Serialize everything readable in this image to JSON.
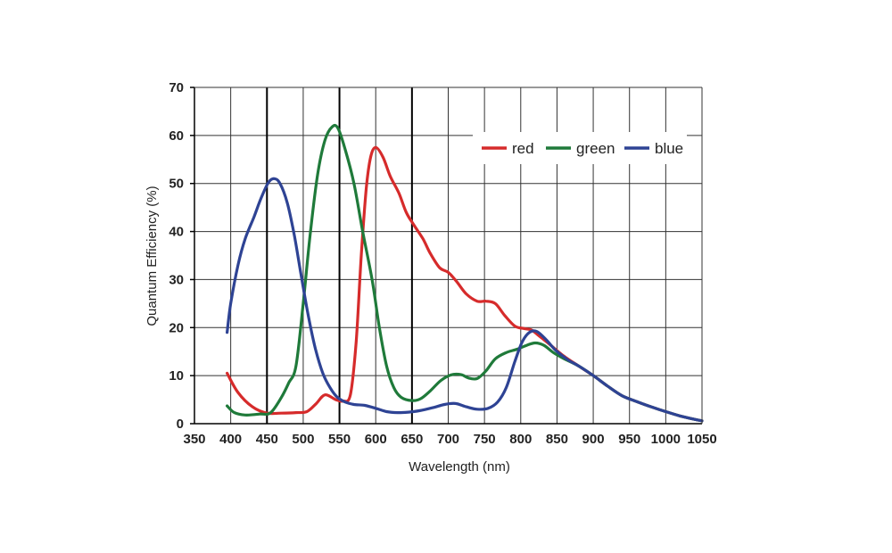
{
  "chart_data": {
    "type": "line",
    "title": "",
    "xlabel": "Wavelength (nm)",
    "ylabel": "Quantum Efficiency (%)",
    "xlim": [
      350,
      1050
    ],
    "ylim": [
      0,
      70
    ],
    "xticks": [
      350,
      400,
      450,
      500,
      550,
      600,
      650,
      700,
      750,
      800,
      850,
      900,
      950,
      1000,
      1050
    ],
    "yticks": [
      0,
      10,
      20,
      30,
      40,
      50,
      60,
      70
    ],
    "grid": true,
    "legend_position": "top-right",
    "series": [
      {
        "name": "red",
        "color": "#d62b2b",
        "points": [
          [
            395,
            10.5
          ],
          [
            410,
            6.5
          ],
          [
            430,
            3.5
          ],
          [
            450,
            2.2
          ],
          [
            470,
            2.2
          ],
          [
            490,
            2.3
          ],
          [
            505,
            2.5
          ],
          [
            518,
            4.2
          ],
          [
            530,
            6.0
          ],
          [
            545,
            5.0
          ],
          [
            555,
            4.7
          ],
          [
            565,
            6.0
          ],
          [
            573,
            17
          ],
          [
            580,
            35
          ],
          [
            587,
            49
          ],
          [
            593,
            55.5
          ],
          [
            600,
            57.5
          ],
          [
            610,
            55.5
          ],
          [
            620,
            51.5
          ],
          [
            632,
            48
          ],
          [
            642,
            44
          ],
          [
            652,
            41.5
          ],
          [
            665,
            38.5
          ],
          [
            675,
            35.5
          ],
          [
            688,
            32.5
          ],
          [
            700,
            31.5
          ],
          [
            712,
            29.5
          ],
          [
            725,
            27
          ],
          [
            740,
            25.5
          ],
          [
            752,
            25.5
          ],
          [
            765,
            25
          ],
          [
            778,
            22.5
          ],
          [
            792,
            20.3
          ],
          [
            805,
            19.8
          ],
          [
            815,
            19.5
          ],
          [
            825,
            18.3
          ],
          [
            840,
            16.5
          ],
          [
            860,
            14
          ],
          [
            880,
            12
          ],
          [
            900,
            10
          ],
          [
            920,
            7.8
          ],
          [
            940,
            5.8
          ],
          [
            960,
            4.6
          ],
          [
            980,
            3.5
          ],
          [
            1000,
            2.5
          ],
          [
            1020,
            1.6
          ],
          [
            1040,
            0.9
          ],
          [
            1050,
            0.6
          ]
        ]
      },
      {
        "name": "green",
        "color": "#1f7a3a",
        "points": [
          [
            395,
            3.7
          ],
          [
            405,
            2.3
          ],
          [
            420,
            1.8
          ],
          [
            440,
            2.0
          ],
          [
            455,
            2.3
          ],
          [
            470,
            5.5
          ],
          [
            480,
            8.5
          ],
          [
            490,
            12
          ],
          [
            500,
            25
          ],
          [
            510,
            40
          ],
          [
            520,
            52
          ],
          [
            530,
            59
          ],
          [
            540,
            61.8
          ],
          [
            548,
            61.5
          ],
          [
            558,
            57
          ],
          [
            570,
            50
          ],
          [
            582,
            40
          ],
          [
            595,
            30
          ],
          [
            605,
            20
          ],
          [
            615,
            12
          ],
          [
            625,
            7.5
          ],
          [
            635,
            5.5
          ],
          [
            650,
            4.8
          ],
          [
            662,
            5.2
          ],
          [
            675,
            6.8
          ],
          [
            690,
            9.0
          ],
          [
            705,
            10.2
          ],
          [
            718,
            10.2
          ],
          [
            728,
            9.5
          ],
          [
            740,
            9.4
          ],
          [
            752,
            11
          ],
          [
            765,
            13.5
          ],
          [
            780,
            14.8
          ],
          [
            795,
            15.5
          ],
          [
            808,
            16.3
          ],
          [
            820,
            16.8
          ],
          [
            832,
            16.3
          ],
          [
            845,
            14.8
          ],
          [
            860,
            13.5
          ],
          [
            880,
            12
          ],
          [
            900,
            10
          ],
          [
            920,
            7.8
          ],
          [
            940,
            5.8
          ],
          [
            960,
            4.6
          ],
          [
            980,
            3.5
          ],
          [
            1000,
            2.5
          ],
          [
            1020,
            1.6
          ],
          [
            1040,
            0.9
          ],
          [
            1050,
            0.6
          ]
        ]
      },
      {
        "name": "blue",
        "color": "#2e4394",
        "points": [
          [
            395,
            19
          ],
          [
            400,
            25
          ],
          [
            410,
            33
          ],
          [
            420,
            38.5
          ],
          [
            432,
            43
          ],
          [
            442,
            47
          ],
          [
            452,
            50.2
          ],
          [
            460,
            51
          ],
          [
            468,
            50
          ],
          [
            478,
            46
          ],
          [
            488,
            39
          ],
          [
            497,
            31
          ],
          [
            507,
            22.5
          ],
          [
            517,
            15.5
          ],
          [
            527,
            10.5
          ],
          [
            537,
            7.5
          ],
          [
            547,
            5.5
          ],
          [
            558,
            4.5
          ],
          [
            570,
            4.0
          ],
          [
            585,
            3.8
          ],
          [
            600,
            3.2
          ],
          [
            615,
            2.5
          ],
          [
            630,
            2.3
          ],
          [
            645,
            2.4
          ],
          [
            660,
            2.7
          ],
          [
            678,
            3.3
          ],
          [
            695,
            4.0
          ],
          [
            710,
            4.2
          ],
          [
            725,
            3.5
          ],
          [
            740,
            3.0
          ],
          [
            755,
            3.2
          ],
          [
            768,
            4.5
          ],
          [
            780,
            7.5
          ],
          [
            792,
            13
          ],
          [
            802,
            17
          ],
          [
            812,
            19
          ],
          [
            822,
            19.2
          ],
          [
            835,
            17.5
          ],
          [
            848,
            15.3
          ],
          [
            865,
            13.3
          ],
          [
            880,
            12
          ],
          [
            900,
            10
          ],
          [
            920,
            7.8
          ],
          [
            940,
            5.8
          ],
          [
            960,
            4.6
          ],
          [
            980,
            3.5
          ],
          [
            1000,
            2.5
          ],
          [
            1020,
            1.6
          ],
          [
            1040,
            0.9
          ],
          [
            1050,
            0.6
          ]
        ]
      }
    ]
  }
}
